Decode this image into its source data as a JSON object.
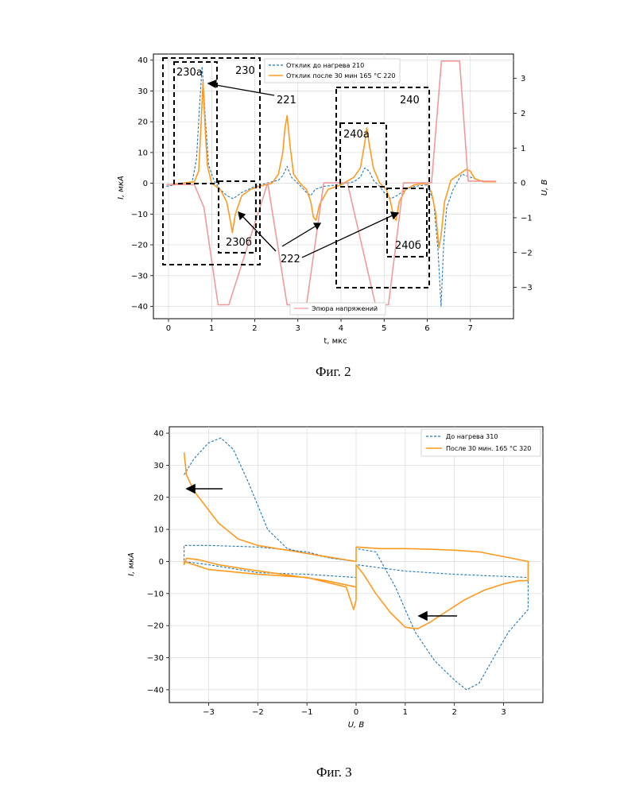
{
  "fig2": {
    "caption": "Фиг. 2",
    "chart_data": {
      "type": "line",
      "xlabel": "t, мкс",
      "ylabel": "I, мкА",
      "ylabel_right": "U, В",
      "xlim": [
        -0.35,
        8.0
      ],
      "ylim": [
        -44,
        42
      ],
      "ylim_right": [
        -3.9,
        3.7
      ],
      "xticks": [
        "0",
        "1",
        "2",
        "3",
        "4",
        "5",
        "6",
        "7"
      ],
      "yticks": [
        "40",
        "30",
        "20",
        "10",
        "0",
        "−10",
        "−20",
        "−30",
        "−40"
      ],
      "yticks_right": [
        "3",
        "2",
        "1",
        "0",
        "−1",
        "−2",
        "−3"
      ],
      "legend_position": "top-right",
      "series": [
        {
          "name": "Отклик до нагрева 210",
          "color": "#1f77b4",
          "style": "dashed",
          "x": [
            -0.05,
            0.55,
            0.65,
            0.72,
            0.78,
            0.85,
            0.93,
            1.05,
            1.2,
            1.35,
            1.5,
            1.7,
            2.0,
            2.4,
            2.55,
            2.65,
            2.75,
            2.85,
            3.0,
            3.1,
            3.2,
            3.3,
            3.4,
            3.6,
            3.9,
            4.3,
            4.45,
            4.55,
            4.65,
            4.75,
            4.9,
            5.0,
            5.15,
            5.3,
            5.5,
            5.7,
            6.0,
            6.15,
            6.25,
            6.32,
            6.38,
            6.45,
            6.6,
            6.8,
            7.0,
            7.2,
            7.5
          ],
          "y": [
            -1,
            0.5,
            8,
            25,
            38,
            22,
            6,
            1,
            -2,
            -4,
            -5,
            -3,
            -1,
            0.5,
            1,
            2.5,
            5.5,
            2,
            0,
            -1.5,
            -3,
            -4,
            -2,
            -1,
            -0.5,
            0.5,
            2,
            5,
            4,
            1,
            -1,
            -3,
            -5,
            -4,
            -2,
            -1,
            -0.5,
            -6,
            -22,
            -40,
            -20,
            -8,
            -2,
            3,
            2,
            1,
            0.5
          ]
        },
        {
          "name": "Отклик после 30 мин  165 °C 220",
          "color": "#ff9a1f",
          "style": "solid",
          "x": [
            0,
            0.6,
            0.7,
            0.75,
            0.8,
            0.85,
            0.9,
            1.0,
            1.2,
            1.35,
            1.42,
            1.48,
            1.55,
            1.7,
            1.9,
            2.1,
            2.4,
            2.55,
            2.65,
            2.7,
            2.75,
            2.82,
            2.9,
            3.05,
            3.2,
            3.3,
            3.36,
            3.42,
            3.5,
            3.7,
            4.0,
            4.3,
            4.45,
            4.55,
            4.6,
            4.65,
            4.75,
            4.9,
            5.05,
            5.15,
            5.22,
            5.28,
            5.35,
            5.5,
            5.7,
            6.0,
            6.1,
            6.2,
            6.27,
            6.32,
            6.4,
            6.55,
            6.75,
            6.9,
            7.0,
            7.1,
            7.3,
            7.6
          ],
          "y": [
            -0.5,
            0.5,
            4,
            18,
            33,
            18,
            6,
            0,
            -2,
            -6,
            -11,
            -16,
            -10,
            -4,
            -2,
            -1,
            0,
            3,
            10,
            18,
            22,
            12,
            3,
            0,
            -2,
            -6,
            -11,
            -12,
            -7,
            -2,
            -0.5,
            2,
            5,
            13,
            18,
            13,
            5,
            0,
            -2,
            -6,
            -11,
            -12,
            -6,
            -2,
            -0.5,
            0,
            -3,
            -10,
            -21,
            -17,
            -6,
            1,
            3,
            4.5,
            4,
            1.5,
            0.5,
            0.5
          ]
        },
        {
          "name": "Эпюра напряжений",
          "color": "#f29a9a",
          "style": "solid",
          "axis": "right",
          "x": [
            -0.05,
            0.6,
            0.82,
            1.15,
            1.4,
            2.3,
            2.75,
            3.2,
            3.6,
            4.15,
            4.8,
            5.1,
            5.45,
            6.1,
            6.33,
            6.53,
            6.75,
            6.95,
            7.6
          ],
          "y": [
            -0.05,
            -0.05,
            -0.7,
            -3.5,
            -3.5,
            0,
            -3.5,
            -3.5,
            0,
            0,
            -3.5,
            -3.5,
            0,
            0,
            3.5,
            3.5,
            3.5,
            0.05,
            0.05
          ]
        }
      ],
      "annotations": [
        "230а",
        "230",
        "221",
        "240",
        "240а",
        "222",
        "230б",
        "240б"
      ]
    }
  },
  "fig3": {
    "caption": "Фиг. 3",
    "chart_data": {
      "type": "line",
      "xlabel": "U, В",
      "ylabel": "I, мкА",
      "xlim": [
        -3.8,
        3.8
      ],
      "ylim": [
        -44,
        42
      ],
      "xticks": [
        "−3",
        "−2",
        "−1",
        "0",
        "1",
        "2",
        "3"
      ],
      "yticks": [
        "40",
        "30",
        "20",
        "10",
        "0",
        "−10",
        "−20",
        "−30",
        "−40"
      ],
      "legend_position": "top-right",
      "series": [
        {
          "name": "До нагрева 310",
          "color": "#1f77b4",
          "style": "dashed",
          "x": [
            -3.5,
            -3.3,
            -3.0,
            -2.75,
            -2.5,
            -2.2,
            -1.8,
            -1.4,
            -1.0,
            -0.5,
            0,
            0,
            0.4,
            0.8,
            1.2,
            1.6,
            2.0,
            2.25,
            2.5,
            2.8,
            3.1,
            3.5,
            3.5,
            2.0,
            1.0,
            0,
            0,
            -1.0,
            -2.0,
            -3.0,
            -3.5,
            -3.5,
            -3.0,
            -2.0,
            -1.0,
            -0.5,
            0
          ],
          "y": [
            27,
            32,
            37,
            38.5,
            35,
            25,
            10,
            4,
            2.5,
            1,
            0,
            4,
            3,
            -8,
            -22,
            -31,
            -37,
            -40,
            -38,
            -30,
            -22,
            -15,
            -5,
            -4,
            -3,
            -1,
            -5,
            -4,
            -3.5,
            -1,
            0,
            5,
            5,
            4.5,
            3,
            1,
            0
          ]
        },
        {
          "name": "После 30 мин. 165 °C 320",
          "color": "#ff9a1f",
          "style": "solid",
          "x": [
            -3.5,
            -3.45,
            -3.3,
            -3.1,
            -2.8,
            -2.4,
            -2.0,
            -1.4,
            -0.6,
            0,
            0,
            0.5,
            1.0,
            1.5,
            2.0,
            2.5,
            3.0,
            3.5,
            3.5,
            3.3,
            3.0,
            2.6,
            2.2,
            1.8,
            1.5,
            1.25,
            1.0,
            0.7,
            0.4,
            0.15,
            0,
            0,
            -0.05,
            -0.2,
            -1.0,
            -2.0,
            -3.0,
            -3.5,
            -3.5,
            -3.45,
            -3.2,
            -2.8,
            -2.2,
            -1.5,
            -0.6,
            0
          ],
          "y": [
            34,
            27,
            22,
            18,
            12,
            7,
            5,
            3.5,
            1.5,
            0,
            4.5,
            4,
            4,
            3.8,
            3.5,
            3,
            1.5,
            0,
            -6,
            -6,
            -7,
            -9,
            -12,
            -16,
            -19,
            -21,
            -20.5,
            -16,
            -10,
            -4,
            -1,
            -12,
            -15,
            -8,
            -5,
            -4,
            -2.5,
            0,
            -1,
            1,
            0.5,
            -1,
            -2.5,
            -4,
            -6,
            -8
          ]
        }
      ]
    }
  }
}
